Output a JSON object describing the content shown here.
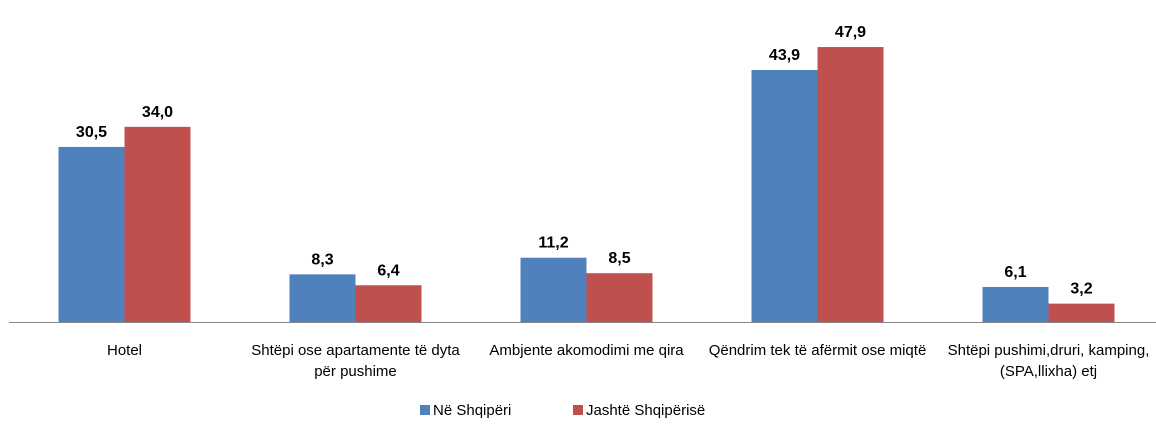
{
  "chart_data": {
    "type": "bar",
    "categories": [
      "Hotel",
      "Shtëpi ose apartamente të dyta për pushime",
      "Ambjente akomodimi me qira",
      "Qëndrim tek të afërmit ose miqtë",
      "Shtëpi pushimi,druri, kamping, (SPA,llixha) etj"
    ],
    "series": [
      {
        "name": "Në Shqipëri",
        "color": "#4f81bd",
        "values": [
          30.5,
          8.3,
          11.2,
          43.9,
          6.1
        ],
        "value_labels": [
          "30,5",
          "8,3",
          "11,2",
          "43,9",
          "6,1"
        ]
      },
      {
        "name": "Jashtë Shqipërisë",
        "color": "#c0504d",
        "values": [
          34.0,
          6.4,
          8.5,
          47.9,
          3.2
        ],
        "value_labels": [
          "34,0",
          "6,4",
          "8,5",
          "47,9",
          "3,2"
        ]
      }
    ],
    "legend": "bottom"
  }
}
